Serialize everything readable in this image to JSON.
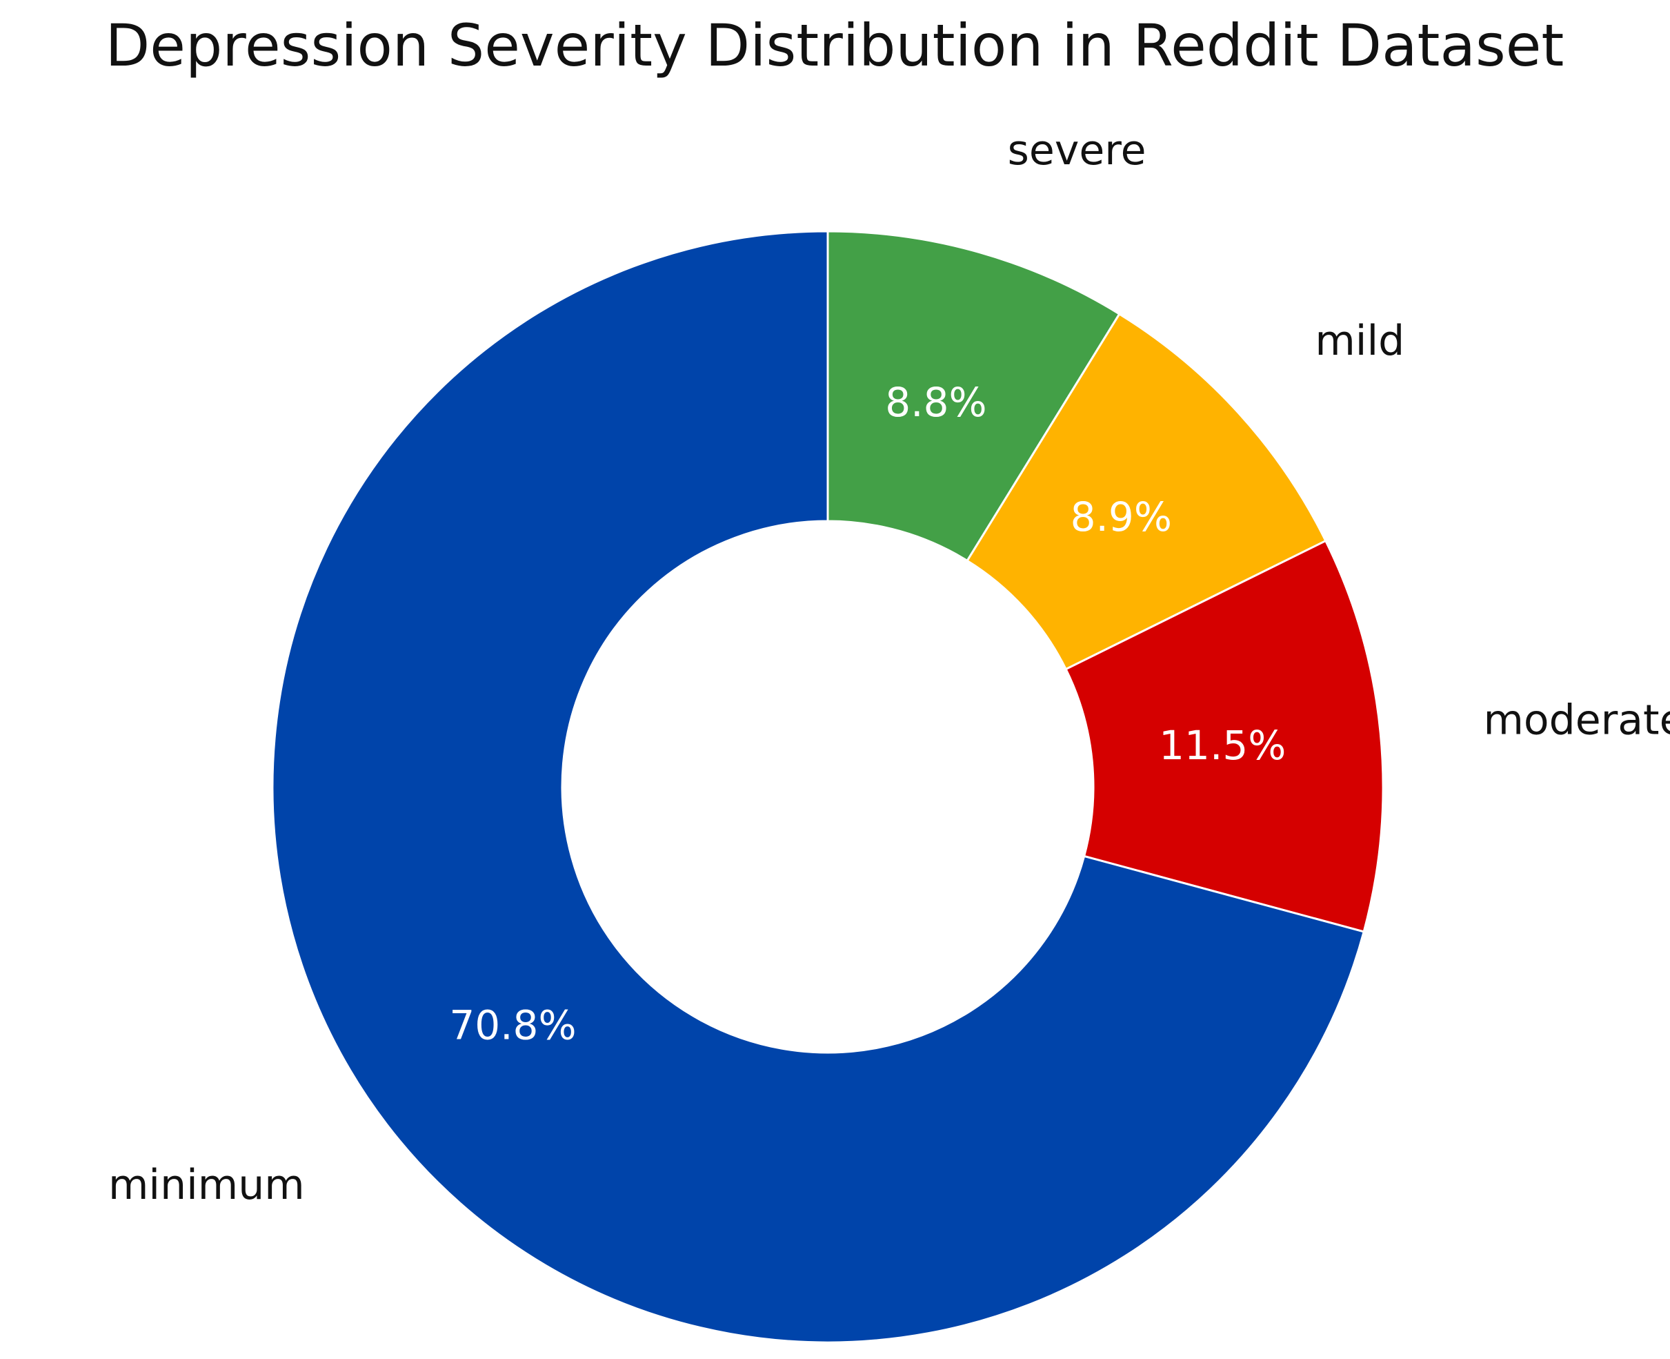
{
  "chart_data": {
    "type": "pie",
    "title": "Depression Severity Distribution in Reddit Dataset",
    "donut": true,
    "start_angle_deg": 90,
    "direction": "clockwise",
    "slices": [
      {
        "label": "severe",
        "value": 8.8,
        "pct_label": "8.8%",
        "color": "#43A047"
      },
      {
        "label": "mild",
        "value": 8.9,
        "pct_label": "8.9%",
        "color": "#FFB300"
      },
      {
        "label": "moderate",
        "value": 11.5,
        "pct_label": "11.5%",
        "color": "#D50000"
      },
      {
        "label": "minimum",
        "value": 70.8,
        "pct_label": "70.8%",
        "color": "#0044AA"
      }
    ]
  }
}
